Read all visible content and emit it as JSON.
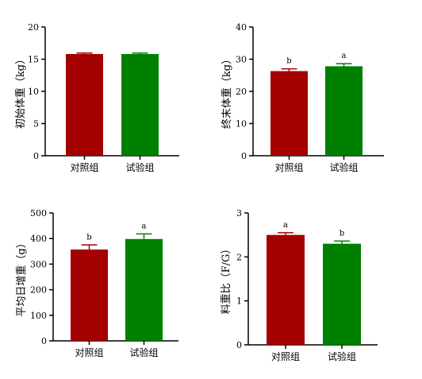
{
  "colors": {
    "control": "#a30000",
    "trial": "#008000",
    "axis": "#000000"
  },
  "chart_data": [
    {
      "type": "bar",
      "categories": [
        "对照组",
        "试验组"
      ],
      "values": [
        15.8,
        15.8
      ],
      "errors": [
        0.15,
        0.15
      ],
      "sig_labels": [
        "",
        ""
      ],
      "ylabel": "初始体重（kg）",
      "ylim": [
        0,
        20
      ],
      "yticks": [
        0,
        5,
        10,
        15,
        20
      ],
      "ytick_labels": [
        "0",
        "5",
        "10",
        "15",
        "20"
      ]
    },
    {
      "type": "bar",
      "categories": [
        "对照组",
        "试验组"
      ],
      "values": [
        26.3,
        27.8
      ],
      "errors": [
        0.7,
        0.8
      ],
      "sig_labels": [
        "b",
        "a"
      ],
      "ylabel": "终末体重（kg）",
      "ylim": [
        0,
        40
      ],
      "yticks": [
        0,
        10,
        20,
        30,
        40
      ],
      "ytick_labels": [
        "0",
        "10",
        "20",
        "30",
        "40"
      ]
    },
    {
      "type": "bar",
      "categories": [
        "对照组",
        "试验组"
      ],
      "values": [
        357,
        398
      ],
      "errors": [
        18,
        20
      ],
      "sig_labels": [
        "b",
        "a"
      ],
      "ylabel": "平均日增重（g）",
      "ylim": [
        0,
        500
      ],
      "yticks": [
        0,
        100,
        200,
        300,
        400,
        500
      ],
      "ytick_labels": [
        "0",
        "100",
        "200",
        "300",
        "400",
        "500"
      ]
    },
    {
      "type": "bar",
      "categories": [
        "对照组",
        "试验组"
      ],
      "values": [
        2.5,
        2.3
      ],
      "errors": [
        0.05,
        0.06
      ],
      "sig_labels": [
        "a",
        "b"
      ],
      "ylabel": "料重比（F/G）",
      "ylim": [
        0,
        3
      ],
      "yticks": [
        0,
        1,
        2,
        3
      ],
      "ytick_labels": [
        "0",
        "1",
        "2",
        "3"
      ]
    }
  ]
}
